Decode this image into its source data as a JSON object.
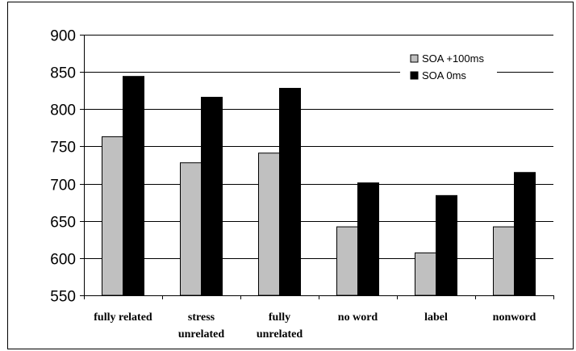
{
  "chart_data": {
    "type": "bar",
    "title": "",
    "xlabel": "",
    "ylabel": "",
    "categories": [
      [
        "fully related"
      ],
      [
        "stress",
        "unrelated"
      ],
      [
        "fully",
        "unrelated"
      ],
      [
        "no word"
      ],
      [
        "label"
      ],
      [
        "nonword"
      ]
    ],
    "series": [
      {
        "name": "SOA +100ms",
        "color": "#c0c0c0",
        "values": [
          763,
          728,
          741,
          642,
          607,
          642
        ]
      },
      {
        "name": "SOA 0ms",
        "color": "#000000",
        "values": [
          844,
          816,
          828,
          701,
          684,
          715
        ]
      }
    ],
    "ylim": [
      550,
      900
    ],
    "yticks": [
      550,
      600,
      650,
      700,
      750,
      800,
      850,
      900
    ],
    "grid": true,
    "legend_position": "top-right"
  }
}
